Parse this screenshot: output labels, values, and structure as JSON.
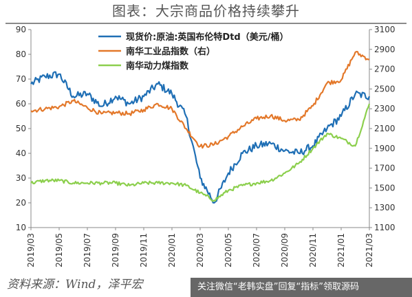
{
  "title": "图表：大宗商品价格持续攀升",
  "source": "资料来源：Wind，泽平宏",
  "watermark": "关注微信“老韩实盘”回复“指标”领取源码",
  "chart_data": {
    "type": "line",
    "title": "图表：大宗商品价格持续攀升",
    "xlabel": "",
    "ylabel": "",
    "x_ticks": [
      "2019/03",
      "2019/05",
      "2019/07",
      "2019/09",
      "2019/11",
      "2020/01",
      "2020/03",
      "2020/05",
      "2020/07",
      "2020/09",
      "2020/11",
      "2021/01",
      "2021/03"
    ],
    "y_left": {
      "ticks": [
        10,
        20,
        30,
        40,
        50,
        60,
        70,
        80,
        90
      ],
      "range": [
        10,
        90
      ]
    },
    "y_right": {
      "ticks": [
        1100,
        1300,
        1500,
        1700,
        1900,
        2100,
        2300,
        2500,
        2700,
        2900,
        3100
      ],
      "range": [
        1100,
        3100
      ]
    },
    "legend_position": "top-center",
    "grid": false,
    "series": [
      {
        "name": "现货价:原油:英国布伦特Dtd（美元/桶）",
        "axis": "left",
        "color": "#1f6fb5",
        "x": [
          "2019/03",
          "2019/04",
          "2019/05",
          "2019/06",
          "2019/07",
          "2019/08",
          "2019/09",
          "2019/10",
          "2019/11",
          "2019/12",
          "2020/01",
          "2020/02",
          "2020/03",
          "2020/04",
          "2020/05",
          "2020/06",
          "2020/07",
          "2020/08",
          "2020/09",
          "2020/10",
          "2020/11",
          "2020/12",
          "2021/01",
          "2021/02",
          "2021/03"
        ],
        "values": [
          68,
          71,
          72,
          63,
          64,
          59,
          63,
          60,
          63,
          68,
          64,
          55,
          30,
          20,
          32,
          40,
          43,
          44,
          41,
          40,
          43,
          50,
          55,
          64,
          63
        ]
      },
      {
        "name": "南华工业品指数（右）",
        "axis": "right",
        "color": "#e3782a",
        "x": [
          "2019/03",
          "2019/04",
          "2019/05",
          "2019/06",
          "2019/07",
          "2019/08",
          "2019/09",
          "2019/10",
          "2019/11",
          "2019/12",
          "2020/01",
          "2020/02",
          "2020/03",
          "2020/04",
          "2020/05",
          "2020/06",
          "2020/07",
          "2020/08",
          "2020/09",
          "2020/10",
          "2020/11",
          "2020/12",
          "2021/01",
          "2021/02",
          "2021/03"
        ],
        "values": [
          2280,
          2300,
          2320,
          2380,
          2310,
          2250,
          2260,
          2250,
          2290,
          2350,
          2300,
          2100,
          1920,
          1940,
          2020,
          2120,
          2200,
          2230,
          2180,
          2190,
          2330,
          2560,
          2590,
          2870,
          2800
        ]
      },
      {
        "name": "南华动力煤指数",
        "axis": "left",
        "color": "#8ccf4d",
        "x": [
          "2019/03",
          "2019/04",
          "2019/05",
          "2019/06",
          "2019/07",
          "2019/08",
          "2019/09",
          "2019/10",
          "2019/11",
          "2019/12",
          "2020/01",
          "2020/02",
          "2020/03",
          "2020/04",
          "2020/05",
          "2020/06",
          "2020/07",
          "2020/08",
          "2020/09",
          "2020/10",
          "2020/11",
          "2020/12",
          "2021/01",
          "2021/02",
          "2021/03"
        ],
        "values": [
          28,
          29,
          29,
          28,
          28,
          28,
          28,
          27,
          28,
          28,
          28,
          27,
          24,
          21,
          25,
          27,
          28,
          29,
          32,
          36,
          42,
          48,
          46,
          43,
          60
        ]
      }
    ]
  }
}
